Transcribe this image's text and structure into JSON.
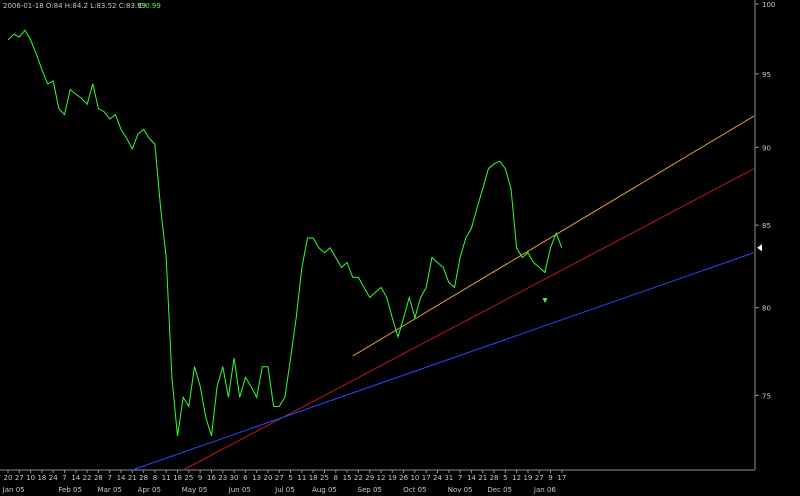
{
  "chart_data": {
    "type": "line",
    "title": "2006-01-18 O:84 H:84.2 L:83.52 C:83.99",
    "change_label": "C:0.99",
    "categories": [
      "20",
      null,
      "27",
      null,
      "10",
      null,
      "18",
      null,
      "24",
      null,
      "7",
      null,
      "14",
      null,
      "22",
      null,
      "28",
      null,
      "7",
      null,
      "14",
      null,
      "21",
      null,
      "28",
      null,
      "8",
      null,
      "11",
      null,
      "18",
      null,
      "25",
      null,
      "9",
      null,
      "16",
      null,
      "23",
      null,
      "30",
      null,
      "6",
      null,
      "13",
      null,
      "20",
      null,
      "27",
      null,
      "5",
      null,
      "11",
      null,
      "18",
      null,
      "25",
      null,
      "8",
      null,
      "15",
      null,
      "22",
      null,
      "29",
      null,
      "12",
      null,
      "19",
      null,
      "26",
      null,
      "10",
      null,
      "17",
      null,
      "24",
      null,
      "31",
      null,
      "7",
      null,
      "14",
      null,
      "21",
      null,
      "28",
      null,
      "5",
      null,
      "12",
      null,
      "19",
      null,
      "27",
      null,
      "9",
      null,
      "17"
    ],
    "months": [
      null,
      "Jan 05",
      null,
      null,
      null,
      null,
      null,
      null,
      null,
      null,
      null,
      "Feb 05",
      null,
      null,
      null,
      null,
      null,
      null,
      "Mar 05",
      null,
      null,
      null,
      null,
      null,
      null,
      "Apr 05",
      null,
      null,
      null,
      null,
      null,
      null,
      null,
      "May 05",
      null,
      null,
      null,
      null,
      null,
      null,
      null,
      "Jun 05",
      null,
      null,
      null,
      null,
      null,
      null,
      null,
      "Jul 05",
      null,
      null,
      null,
      null,
      null,
      null,
      "Aug 05",
      null,
      null,
      null,
      null,
      null,
      null,
      null,
      "Sep 05",
      null,
      null,
      null,
      null,
      null,
      null,
      null,
      "Oct 05",
      null,
      null,
      null,
      null,
      null,
      null,
      null,
      "Nov 05",
      null,
      null,
      null,
      null,
      null,
      null,
      "Dec 05",
      null,
      null,
      null,
      null,
      null,
      null,
      null,
      "Jan 06",
      null,
      null,
      null
    ],
    "series": [
      {
        "color": "#33ff33",
        "values": [
          97.4,
          97.8,
          97.6,
          98.1,
          97.4,
          96.4,
          95.3,
          94.3,
          94.5,
          92.6,
          92.2,
          93.9,
          93.6,
          93.3,
          92.9,
          94.3,
          92.6,
          92.4,
          91.9,
          92.2,
          91.2,
          90.6,
          89.9,
          90.9,
          91.2,
          90.6,
          90.2,
          86.1,
          83.0,
          76.0,
          72.8,
          74.9,
          74.4,
          76.6,
          75.5,
          73.8,
          72.8,
          75.5,
          76.6,
          74.9,
          77.1,
          74.9,
          76.0,
          75.5,
          74.9,
          76.6,
          76.6,
          74.4,
          74.4,
          74.9,
          77.1,
          79.4,
          82.4,
          84.2,
          84.2,
          83.6,
          83.3,
          83.6,
          83.0,
          82.4,
          82.7,
          81.8,
          81.8,
          81.2,
          80.6,
          80.9,
          81.2,
          80.6,
          79.4,
          78.3,
          79.4,
          80.6,
          79.4,
          80.6,
          81.2,
          83.0,
          82.7,
          82.4,
          81.5,
          81.2,
          83.0,
          84.2,
          84.8,
          86.1,
          87.3,
          88.6,
          88.9,
          89.1,
          88.6,
          87.3,
          83.6,
          83.0,
          83.3,
          82.7,
          82.4,
          82.1,
          83.6,
          84.5,
          83.6
        ]
      }
    ],
    "trendlines": [
      {
        "color": "#e0a030",
        "x": [
          61,
          132
        ],
        "values": [
          77.2,
          92.1
        ]
      },
      {
        "color": "#c01818",
        "x": [
          31,
          132
        ],
        "values": [
          71.0,
          88.6
        ]
      },
      {
        "color": "#2848ff",
        "x": [
          22,
          132
        ],
        "values": [
          71.0,
          83.3
        ]
      }
    ],
    "xlim": [
      0,
      132
    ],
    "ylim": [
      71.0,
      100.3
    ],
    "yticks": [
      75,
      80,
      85,
      90,
      95,
      100
    ],
    "log_scale": true
  }
}
